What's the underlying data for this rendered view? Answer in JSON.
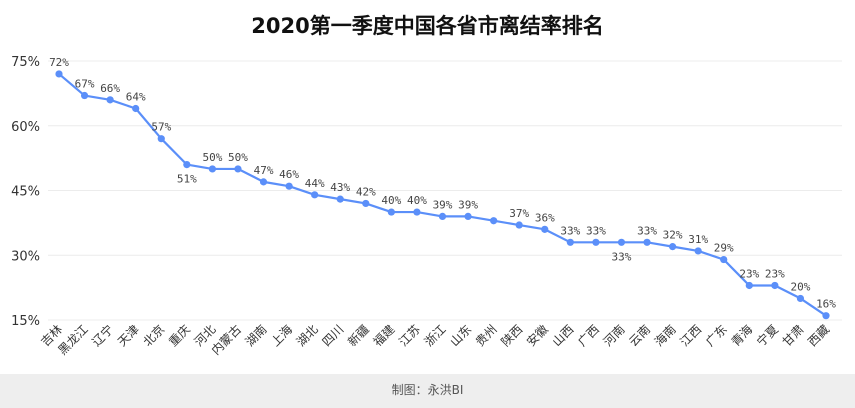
{
  "chart_data": {
    "type": "line",
    "title": "2020第一季度中国各省市离结率排名",
    "categories": [
      "吉林",
      "黑龙江",
      "辽宁",
      "天津",
      "北京",
      "重庆",
      "河北",
      "内蒙古",
      "湖南",
      "上海",
      "湖北",
      "四川",
      "新疆",
      "福建",
      "江苏",
      "浙江",
      "山东",
      "贵州",
      "陕西",
      "安徽",
      "山西",
      "广西",
      "河南",
      "云南",
      "海南",
      "江西",
      "广东",
      "青海",
      "宁夏",
      "甘肃",
      "西藏"
    ],
    "values": [
      72,
      67,
      66,
      64,
      57,
      51,
      50,
      50,
      47,
      46,
      44,
      43,
      42,
      40,
      40,
      39,
      39,
      38,
      37,
      36,
      33,
      33,
      33,
      33,
      32,
      31,
      29,
      23,
      23,
      20,
      16
    ],
    "data_labels": [
      "72%",
      "67%",
      "66%",
      "64%",
      "57%",
      "51%",
      "50%",
      "50%",
      "47%",
      "46%",
      "44%",
      "43%",
      "42%",
      "40%",
      "40%",
      "39%",
      "39%",
      "",
      "37%",
      "36%",
      "33%",
      "33%",
      "33%",
      "33%",
      "32%",
      "31%",
      "29%",
      "23%",
      "23%",
      "20%",
      "16%"
    ],
    "yticks": [
      "15%",
      "30%",
      "45%",
      "60%",
      "75%"
    ],
    "ylim": [
      15,
      75
    ],
    "color": "#5b8ff9",
    "grid": true
  },
  "footer": {
    "text": "制图：永洪BI"
  }
}
